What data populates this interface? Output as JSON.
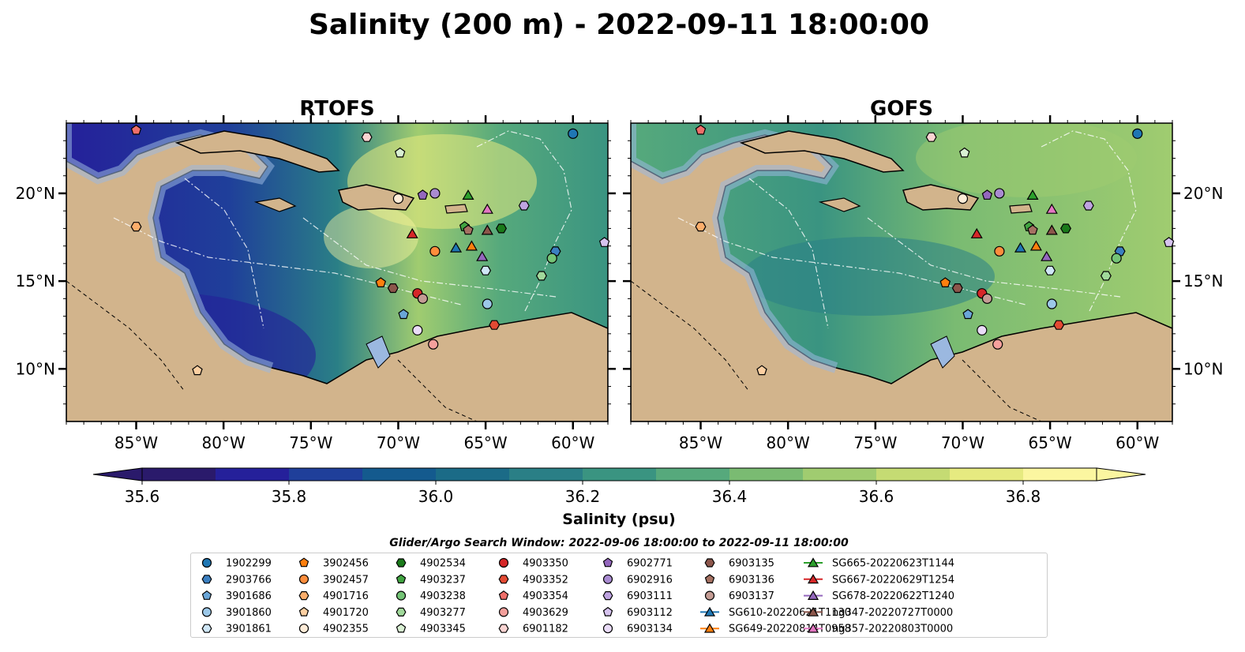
{
  "title": "Salinity (200 m) - 2022-09-11 18:00:00",
  "panels": [
    {
      "title": "RTOFS"
    },
    {
      "title": "GOFS"
    }
  ],
  "colorbar": {
    "label": "Salinity (psu)",
    "min": 35.6,
    "max": 37.0,
    "step": 0.1,
    "ticks": [
      "35.6",
      "35.8",
      "36.0",
      "36.2",
      "36.4",
      "36.6",
      "36.8"
    ],
    "colors": [
      "#2a1a6b",
      "#25209a",
      "#1f3f9a",
      "#145a8e",
      "#1b6b87",
      "#2a7f86",
      "#3a9481",
      "#56a97c",
      "#7abb72",
      "#a0cc70",
      "#c5db73",
      "#e6ea80",
      "#fbf6a0"
    ],
    "extend": "both"
  },
  "search_window": "Glider/Argo Search Window: 2022-09-06 18:00:00 to 2022-09-11 18:00:00",
  "map": {
    "lon_range": [
      -89,
      -58
    ],
    "lat_range": [
      7,
      24
    ],
    "x_ticks": [
      "85°W",
      "80°W",
      "75°W",
      "70°W",
      "65°W",
      "60°W"
    ],
    "y_ticks": [
      "10°N",
      "15°N",
      "20°N"
    ],
    "land_color": "#d2b48c",
    "shelf_color": "#9bb8e0"
  },
  "chart_data": {
    "type": "scatter",
    "title": "Salinity (200 m) - 2022-09-11 18:00:00",
    "xlabel": "",
    "ylabel": "",
    "xlim": [
      -89,
      -58
    ],
    "ylim": [
      7,
      24
    ],
    "series": [
      {
        "name": "1902299",
        "marker": "circle",
        "color": "#1f77b4",
        "lon": -60.0,
        "lat": 23.4
      },
      {
        "name": "2903766",
        "marker": "hexagon",
        "color": "#3b7fc0",
        "lon": -61.0,
        "lat": 16.7
      },
      {
        "name": "3901686",
        "marker": "pentagon",
        "color": "#6aa6d8",
        "lon": -69.7,
        "lat": 13.1
      },
      {
        "name": "3901860",
        "marker": "circle",
        "color": "#9cc8e8",
        "lon": -64.9,
        "lat": 13.7
      },
      {
        "name": "3901861",
        "marker": "hexagon",
        "color": "#cfe6f6",
        "lon": -65.0,
        "lat": 15.6
      },
      {
        "name": "3902456",
        "marker": "pentagon",
        "color": "#ff7f0e",
        "lon": -71.0,
        "lat": 14.9
      },
      {
        "name": "3902457",
        "marker": "circle",
        "color": "#fd8d3c",
        "lon": -67.9,
        "lat": 16.7
      },
      {
        "name": "4901716",
        "marker": "hexagon",
        "color": "#fdae6b",
        "lon": -85.0,
        "lat": 18.1
      },
      {
        "name": "4901720",
        "marker": "pentagon",
        "color": "#fdd0a2",
        "lon": -81.5,
        "lat": 9.9
      },
      {
        "name": "4902355",
        "marker": "circle",
        "color": "#feecd8",
        "lon": -70.0,
        "lat": 19.7
      },
      {
        "name": "4902534",
        "marker": "hexagon",
        "color": "#1a7a1a",
        "lon": -64.1,
        "lat": 18.0
      },
      {
        "name": "4903237",
        "marker": "pentagon",
        "color": "#41a441",
        "lon": -66.2,
        "lat": 18.1
      },
      {
        "name": "4903238",
        "marker": "circle",
        "color": "#74c476",
        "lon": -61.2,
        "lat": 16.3
      },
      {
        "name": "4903277",
        "marker": "hexagon",
        "color": "#a1d99b",
        "lon": -61.8,
        "lat": 15.3
      },
      {
        "name": "4903345",
        "marker": "pentagon",
        "color": "#d9f0d3",
        "lon": -69.9,
        "lat": 22.3
      },
      {
        "name": "4903350",
        "marker": "circle",
        "color": "#d62728",
        "lon": -68.9,
        "lat": 14.3
      },
      {
        "name": "4903352",
        "marker": "hexagon",
        "color": "#e34a33",
        "lon": -64.5,
        "lat": 12.5
      },
      {
        "name": "4903354",
        "marker": "pentagon",
        "color": "#ef6f6a",
        "lon": -85.0,
        "lat": 23.6
      },
      {
        "name": "4903629",
        "marker": "circle",
        "color": "#f4a09c",
        "lon": -68.0,
        "lat": 11.4
      },
      {
        "name": "6901182",
        "marker": "hexagon",
        "color": "#fad4d2",
        "lon": -71.8,
        "lat": 23.2
      },
      {
        "name": "6902771",
        "marker": "pentagon",
        "color": "#9467bd",
        "lon": -68.6,
        "lat": 19.9
      },
      {
        "name": "6902916",
        "marker": "circle",
        "color": "#a98bd1",
        "lon": -67.9,
        "lat": 20.0
      },
      {
        "name": "6903111",
        "marker": "hexagon",
        "color": "#bea3e0",
        "lon": -62.8,
        "lat": 19.3
      },
      {
        "name": "6903112",
        "marker": "pentagon",
        "color": "#d6c3ee",
        "lon": -58.2,
        "lat": 17.2
      },
      {
        "name": "6903134",
        "marker": "circle",
        "color": "#eadcf8",
        "lon": -68.9,
        "lat": 12.2
      },
      {
        "name": "6903135",
        "marker": "hexagon",
        "color": "#8c564b",
        "lon": -70.3,
        "lat": 14.6
      },
      {
        "name": "6903136",
        "marker": "pentagon",
        "color": "#a57162",
        "lon": -66.0,
        "lat": 17.9
      },
      {
        "name": "6903137",
        "marker": "circle",
        "color": "#c49c94",
        "lon": -68.6,
        "lat": 14.0
      },
      {
        "name": "SG610-20220621T1130",
        "marker": "triangle",
        "color": "#1f77b4",
        "lon": -66.7,
        "lat": 16.9
      },
      {
        "name": "SG649-20220814T0958",
        "marker": "triangle",
        "color": "#ff7f0e",
        "lon": -65.8,
        "lat": 17.0
      },
      {
        "name": "SG665-20220623T1144",
        "marker": "triangle",
        "color": "#2ca02c",
        "lon": -66.0,
        "lat": 19.9
      },
      {
        "name": "SG667-20220629T1254",
        "marker": "triangle",
        "color": "#d62728",
        "lon": -69.2,
        "lat": 17.7
      },
      {
        "name": "SG678-20220622T1240",
        "marker": "triangle",
        "color": "#9467bd",
        "lon": -65.2,
        "lat": 16.4
      },
      {
        "name": "ng347-20220727T0000",
        "marker": "triangle",
        "color": "#8c564b",
        "lon": -64.9,
        "lat": 17.9
      },
      {
        "name": "ng357-20220803T0000",
        "marker": "triangle",
        "color": "#e377c2",
        "lon": -64.9,
        "lat": 19.1
      }
    ]
  }
}
